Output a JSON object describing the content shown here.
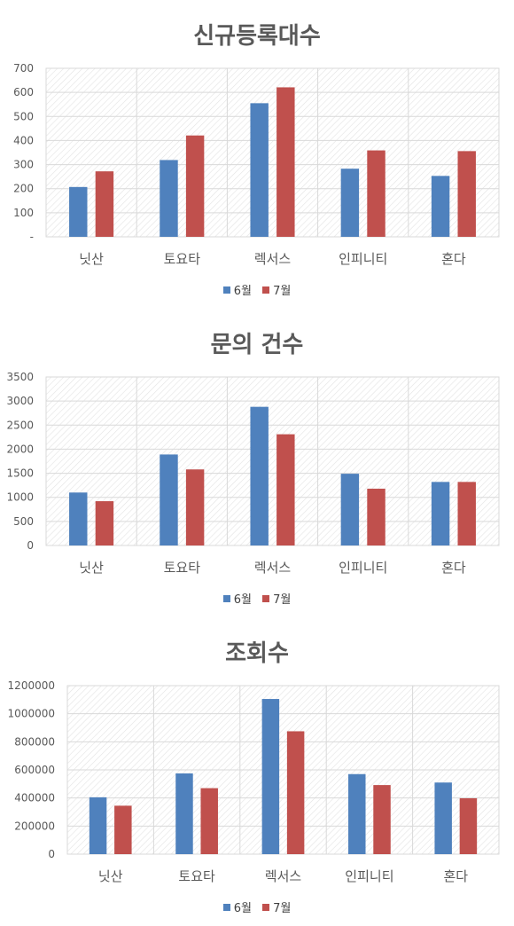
{
  "colors": {
    "series1": "#4f81bd",
    "series2": "#c0504d",
    "grid": "#d9d9d9",
    "text": "#595959"
  },
  "chart_data": [
    {
      "type": "bar",
      "title": "신규등록대수",
      "categories": [
        "닛산",
        "토요타",
        "렉서스",
        "인피니티",
        "혼다"
      ],
      "series": [
        {
          "name": "6월",
          "values": [
            207,
            319,
            555,
            283,
            253
          ]
        },
        {
          "name": "7월",
          "values": [
            272,
            421,
            621,
            359,
            356
          ]
        }
      ],
      "ylim": [
        0,
        700
      ],
      "yticks": [
        "-",
        "100",
        "200",
        "300",
        "400",
        "500",
        "600",
        "700"
      ],
      "grid": true,
      "legend": "bottom"
    },
    {
      "type": "bar",
      "title": "문의 건수",
      "categories": [
        "닛산",
        "토요타",
        "렉서스",
        "인피니티",
        "혼다"
      ],
      "series": [
        {
          "name": "6월",
          "values": [
            1100,
            1890,
            2880,
            1490,
            1320
          ]
        },
        {
          "name": "7월",
          "values": [
            920,
            1580,
            2310,
            1180,
            1320
          ]
        }
      ],
      "ylim": [
        0,
        3500
      ],
      "yticks": [
        "0",
        "500",
        "1000",
        "1500",
        "2000",
        "2500",
        "3000",
        "3500"
      ],
      "grid": true,
      "legend": "bottom"
    },
    {
      "type": "bar",
      "title": "조회수",
      "categories": [
        "닛산",
        "토요타",
        "렉서스",
        "인피니티",
        "혼다"
      ],
      "series": [
        {
          "name": "6월",
          "values": [
            405000,
            575000,
            1105000,
            570000,
            510000
          ]
        },
        {
          "name": "7월",
          "values": [
            345000,
            470000,
            875000,
            492000,
            398000
          ]
        }
      ],
      "ylim": [
        0,
        1200000
      ],
      "yticks": [
        "0",
        "200000",
        "400000",
        "600000",
        "800000",
        "1000000",
        "1200000"
      ],
      "grid": true,
      "legend": "bottom"
    }
  ]
}
